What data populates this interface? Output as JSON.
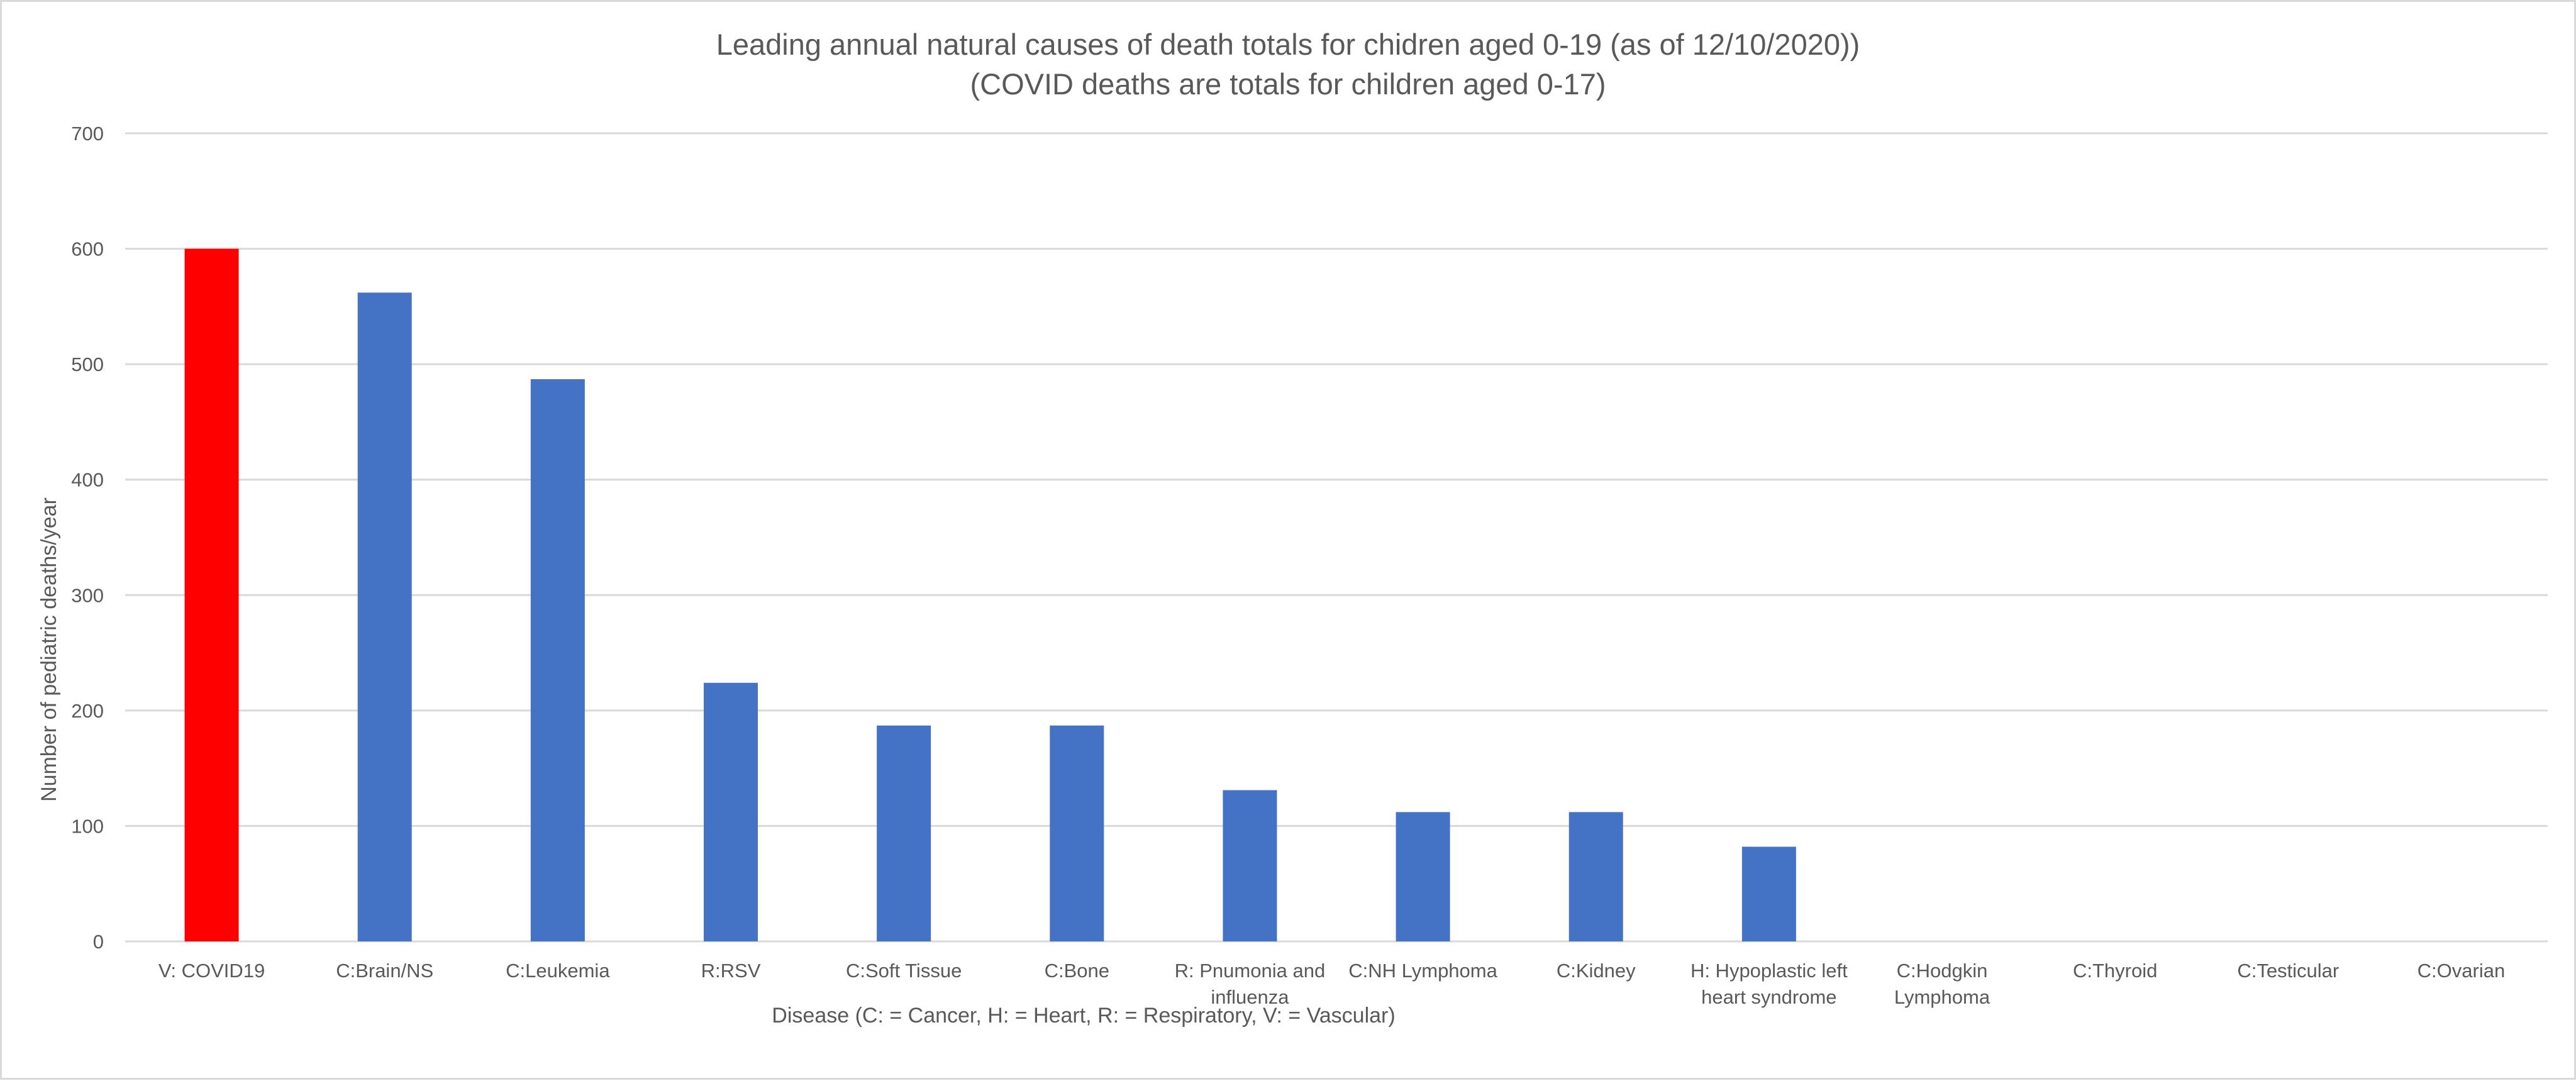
{
  "chart_data": {
    "type": "bar",
    "title": "Leading annual natural causes of death totals for chidren aged 0-19 (as of 12/10/2020))",
    "subtitle": "(COVID deaths are totals for children aged 0-17)",
    "xlabel": "Disease (C: = Cancer, H: = Heart, R: = Respiratory, V: = Vascular)",
    "ylabel": "Number of pediatric deaths/year",
    "ylim": [
      0,
      700
    ],
    "yticks": [
      "0",
      "100",
      "200",
      "300",
      "400",
      "500",
      "600",
      "700"
    ],
    "grid": true,
    "legend": "none",
    "categories": [
      "V: COVID19",
      "C:Brain/NS",
      "C:Leukemia",
      "R:RSV",
      "C:Soft Tissue",
      "C:Bone",
      "R: Pnumonia and influenza",
      "C:NH Lymphoma",
      "C:Kidney",
      "H: Hypoplastic left heart syndrome",
      "C:Hodgkin Lymphoma",
      "C:Thyroid",
      "C:Testicular",
      "C:Ovarian"
    ],
    "category_lines": [
      [
        "V: COVID19"
      ],
      [
        "C:Brain/NS"
      ],
      [
        "C:Leukemia"
      ],
      [
        "R:RSV"
      ],
      [
        "C:Soft Tissue"
      ],
      [
        "C:Bone"
      ],
      [
        "R: Pnumonia and",
        "influenza"
      ],
      [
        "C:NH Lymphoma"
      ],
      [
        "C:Kidney"
      ],
      [
        "H: Hypoplastic left",
        "heart syndrome"
      ],
      [
        "C:Hodgkin",
        "Lymphoma"
      ],
      [
        "C:Thyroid"
      ],
      [
        "C:Testicular"
      ],
      [
        "C:Ovarian"
      ]
    ],
    "values": [
      600,
      562,
      487,
      224,
      187,
      187,
      131,
      112,
      112,
      82,
      0,
      0,
      0,
      0
    ],
    "colors": {
      "highlight": "#ff0000",
      "bar": "#4472c4",
      "grid": "#d9d9d9",
      "text": "#595959"
    },
    "highlight_index": 0
  }
}
